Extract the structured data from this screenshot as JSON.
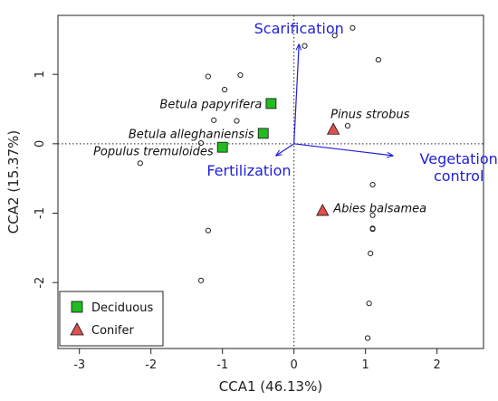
{
  "chart_data": {
    "type": "scatter",
    "xlabel": "CCA1 (46.13%)",
    "ylabel": "CCA2 (15.37%)",
    "xlim": [
      -3.3,
      2.65
    ],
    "ylim": [
      -2.95,
      1.85
    ],
    "xticks": [
      -3,
      -2,
      -1,
      0,
      1,
      2
    ],
    "yticks": [
      -2,
      -1,
      0,
      1
    ],
    "reference_lines": {
      "x": 0,
      "y": 0,
      "style": "dotted"
    },
    "legend": {
      "position": "bottom-left",
      "entries": [
        {
          "label": "Deciduous",
          "marker": "square",
          "color": "#22bb22"
        },
        {
          "label": "Conifer",
          "marker": "triangle",
          "color": "#e05050"
        }
      ]
    },
    "sites": [
      [
        0.82,
        1.67
      ],
      [
        0.57,
        1.56
      ],
      [
        0.15,
        1.41
      ],
      [
        1.18,
        1.21
      ],
      [
        -0.75,
        0.99
      ],
      [
        -1.2,
        0.97
      ],
      [
        -0.97,
        0.78
      ],
      [
        -1.12,
        0.34
      ],
      [
        -0.8,
        0.33
      ],
      [
        0.75,
        0.26
      ],
      [
        -1.3,
        0.01
      ],
      [
        -2.15,
        -0.28
      ],
      [
        1.1,
        -0.59
      ],
      [
        1.1,
        -1.03
      ],
      [
        1.1,
        -1.22
      ],
      [
        1.1,
        -1.23
      ],
      [
        -1.2,
        -1.25
      ],
      [
        1.07,
        -1.58
      ],
      [
        -1.3,
        -1.97
      ],
      [
        1.05,
        -2.3
      ],
      [
        1.03,
        -2.8
      ]
    ],
    "species": [
      {
        "name": "Betula papyrifera",
        "group": "Deciduous",
        "x": -0.32,
        "y": 0.58
      },
      {
        "name": "Betula alleghaniensis",
        "group": "Deciduous",
        "x": -0.43,
        "y": 0.15
      },
      {
        "name": "Populus tremuloides",
        "group": "Deciduous",
        "x": -1.0,
        "y": -0.05
      },
      {
        "name": "Pinus strobus",
        "group": "Conifer",
        "x": 0.55,
        "y": 0.21
      },
      {
        "name": "Abies balsamea",
        "group": "Conifer",
        "x": 0.4,
        "y": -0.96
      }
    ],
    "vectors": [
      {
        "name": "Scarification",
        "x": 0.07,
        "y": 1.43
      },
      {
        "name": "Fertilization",
        "x": -0.25,
        "y": -0.17
      },
      {
        "name": "Vegetation control",
        "x": 1.38,
        "y": -0.17
      }
    ],
    "colors": {
      "vector": "#1f1fd6",
      "deciduous": "#22bb22",
      "conifer": "#e05050",
      "site_point": "#222222"
    }
  }
}
